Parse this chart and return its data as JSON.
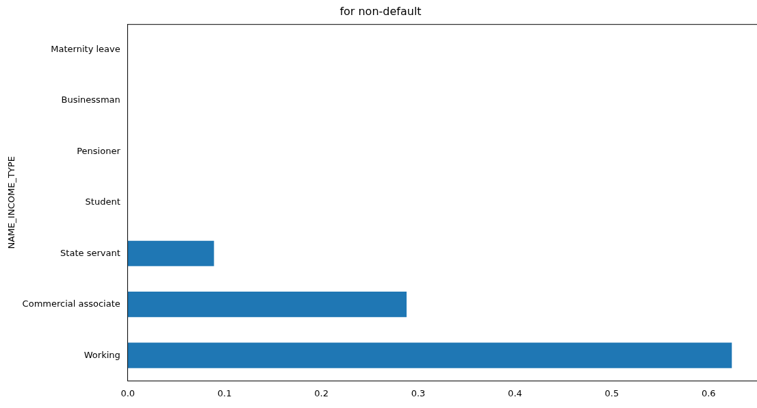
{
  "chart_data": {
    "type": "bar",
    "orientation": "horizontal",
    "title": "for non-default",
    "ylabel": "NAME_INCOME_TYPE",
    "categories": [
      "Maternity leave",
      "Businessman",
      "Pensioner",
      "Student",
      "State servant",
      "Commercial associate",
      "Working"
    ],
    "values": [
      0,
      0,
      0,
      0,
      0.089,
      0.288,
      0.624
    ],
    "color": "#1f77b4",
    "xlim": [
      0,
      0.65
    ],
    "xticks": [
      {
        "value": 0,
        "label": "0.0"
      },
      {
        "value": 0.1,
        "label": "0.1"
      },
      {
        "value": 0.2,
        "label": "0.2"
      },
      {
        "value": 0.3,
        "label": "0.3"
      },
      {
        "value": 0.4,
        "label": "0.4"
      },
      {
        "value": 0.5,
        "label": "0.5"
      },
      {
        "value": 0.6,
        "label": "0.6"
      }
    ],
    "grid": false,
    "legend": false
  }
}
